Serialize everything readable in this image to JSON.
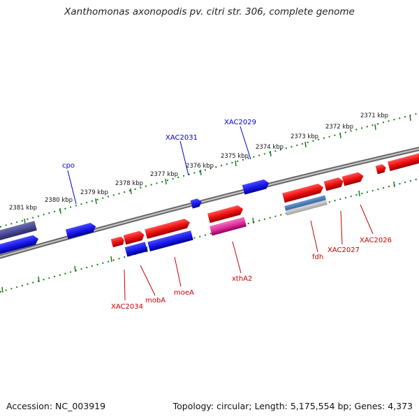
{
  "title": "Xanthomonas axonopodis pv. citri str. 306, complete genome",
  "footer": {
    "accession": "Accession: NC_003919",
    "summary": "Topology: circular; Length: 5,175,554 bp; Genes: 4,373"
  },
  "colors": {
    "forward_gene": "#ee1111",
    "reverse_gene": "#1a1aee",
    "reverse_gene_dark": "#4a4a9a",
    "forward_rna": "#e0339a",
    "forward_gene_steel": "#4a7ab8",
    "tick": "#1a7a1a",
    "backbone": "#888888",
    "label_forward": "#cc0000",
    "label_reverse": "#0000cc"
  },
  "tick_labels": [
    "2381 kbp",
    "2380 kbp",
    "2379 kbp",
    "2378 kbp",
    "2377 kbp",
    "2376 kbp",
    "2375 kbp",
    "2374 kbp",
    "2373 kbp",
    "2372 kbp",
    "2371 kbp"
  ],
  "gene_labels_reverse": [
    "cpo",
    "XAC2031",
    "XAC2029"
  ],
  "gene_labels_forward": [
    "XAC2034",
    "mobA",
    "moeA",
    "xthA2",
    "fdh",
    "XAC2027",
    "XAC2026"
  ]
}
